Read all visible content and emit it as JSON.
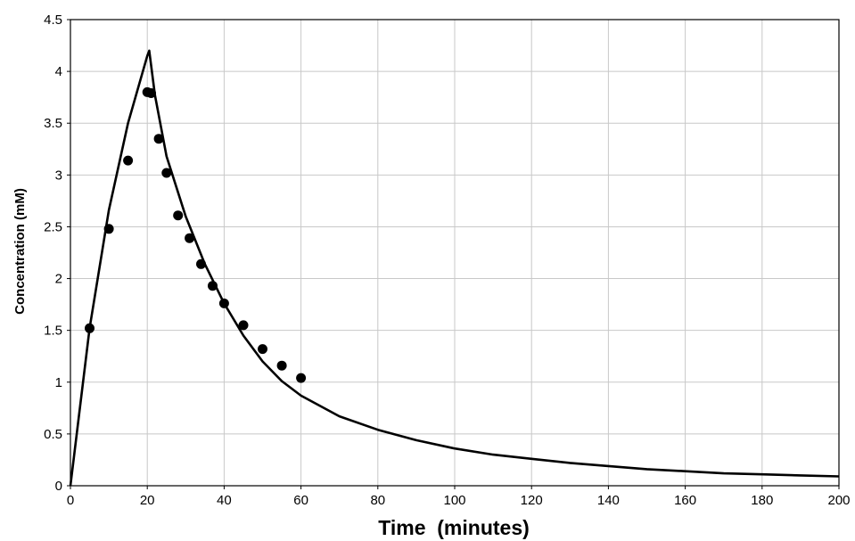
{
  "chart_data": {
    "type": "scatter",
    "xlabel": "Time  (minutes)",
    "ylabel": "Concentration  (mM)",
    "xlim": [
      0,
      200
    ],
    "ylim": [
      0,
      4.5
    ],
    "x_ticks": [
      "0",
      "20",
      "40",
      "60",
      "80",
      "100",
      "120",
      "140",
      "160",
      "180",
      "200"
    ],
    "y_ticks": [
      "0",
      "0.5",
      "1",
      "1.5",
      "2",
      "2.5",
      "3",
      "3.5",
      "4",
      "4.5"
    ],
    "grid": true,
    "series": [
      {
        "style": "scatter",
        "color": "#000000",
        "x": [
          5,
          10,
          15,
          20,
          21,
          23,
          25,
          28,
          31,
          34,
          37,
          40,
          45,
          50,
          55,
          60
        ],
        "y": [
          1.52,
          2.48,
          3.14,
          3.8,
          3.79,
          3.35,
          3.02,
          2.61,
          2.39,
          2.14,
          1.93,
          1.76,
          1.55,
          1.32,
          1.16,
          1.04
        ]
      },
      {
        "style": "line",
        "color": "#000000",
        "x": [
          0,
          5,
          10,
          15,
          20,
          20.5,
          22,
          25,
          30,
          35,
          40,
          45,
          50,
          55,
          60,
          70,
          80,
          90,
          100,
          110,
          120,
          130,
          140,
          150,
          160,
          170,
          180,
          190,
          200
        ],
        "y": [
          0,
          1.52,
          2.66,
          3.5,
          4.15,
          4.2,
          3.77,
          3.18,
          2.6,
          2.14,
          1.76,
          1.45,
          1.2,
          1.01,
          0.87,
          0.67,
          0.54,
          0.44,
          0.36,
          0.3,
          0.26,
          0.22,
          0.19,
          0.16,
          0.14,
          0.12,
          0.11,
          0.1,
          0.09
        ]
      }
    ]
  }
}
